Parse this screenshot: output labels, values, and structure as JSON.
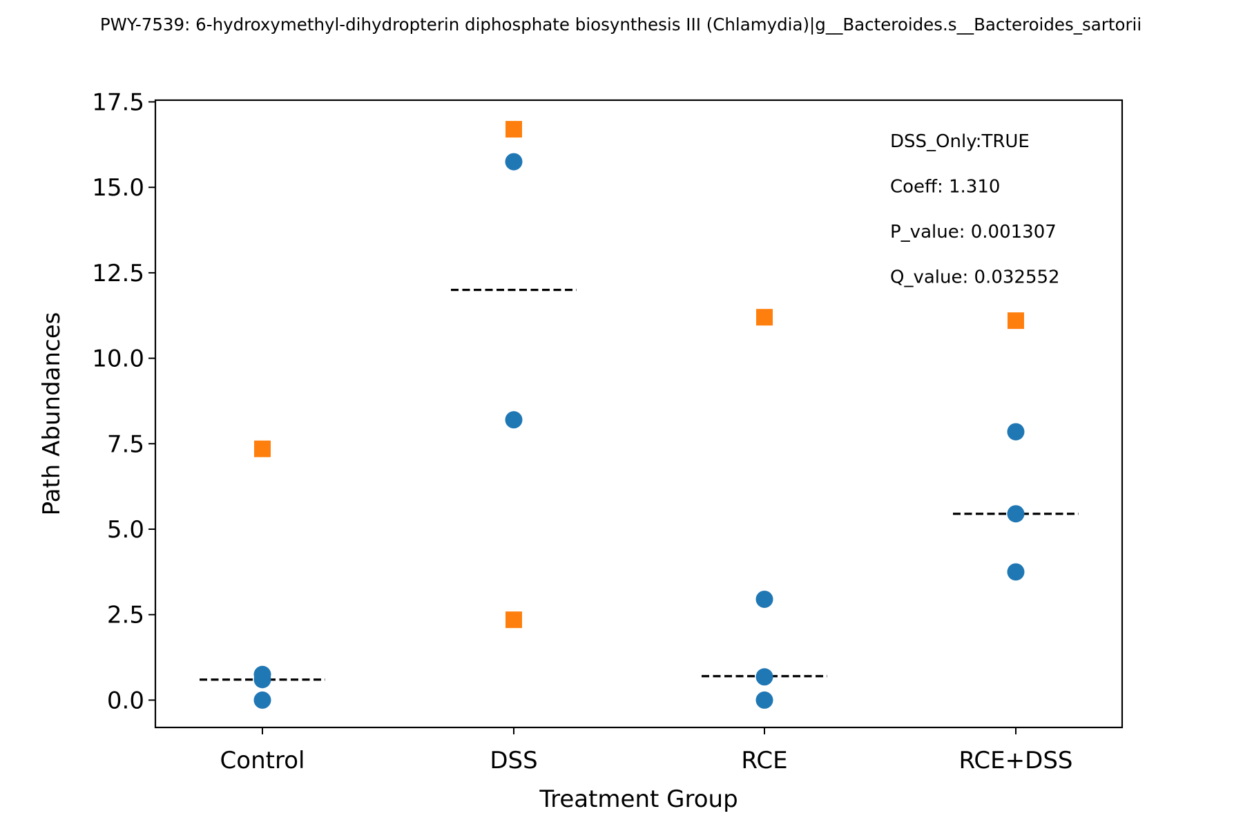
{
  "chart_data": {
    "type": "scatter",
    "title": "PWY-7539: 6-hydroxymethyl-dihydropterin diphosphate biosynthesis III (Chlamydia)|g__Bacteroides.s__Bacteroides_sartorii",
    "xlabel": "Treatment Group",
    "ylabel": "Path Abundances",
    "categories": [
      "Control",
      "DSS",
      "RCE",
      "RCE+DSS"
    ],
    "ylim": [
      -0.8,
      17.55
    ],
    "yticks": [
      0.0,
      2.5,
      5.0,
      7.5,
      10.0,
      12.5,
      15.0,
      17.5
    ],
    "ytick_labels": [
      "0.0",
      "2.5",
      "5.0",
      "7.5",
      "10.0",
      "12.5",
      "15.0",
      "17.5"
    ],
    "grid": false,
    "series": [
      {
        "marker": "circle",
        "color": "#1f77b4",
        "points": [
          {
            "category": "Control",
            "y": 0.0
          },
          {
            "category": "Control",
            "y": 0.6
          },
          {
            "category": "Control",
            "y": 0.75
          },
          {
            "category": "DSS",
            "y": 8.2
          },
          {
            "category": "DSS",
            "y": 15.75
          },
          {
            "category": "RCE",
            "y": 0.0
          },
          {
            "category": "RCE",
            "y": 0.68
          },
          {
            "category": "RCE",
            "y": 2.95
          },
          {
            "category": "RCE+DSS",
            "y": 3.75
          },
          {
            "category": "RCE+DSS",
            "y": 5.45
          },
          {
            "category": "RCE+DSS",
            "y": 7.85
          }
        ]
      },
      {
        "marker": "square",
        "color": "#ff7f0e",
        "points": [
          {
            "category": "Control",
            "y": 7.35
          },
          {
            "category": "DSS",
            "y": 2.35
          },
          {
            "category": "DSS",
            "y": 16.7
          },
          {
            "category": "RCE",
            "y": 11.2
          },
          {
            "category": "RCE+DSS",
            "y": 11.1
          }
        ]
      }
    ],
    "medians": [
      {
        "category": "Control",
        "y": 0.6
      },
      {
        "category": "DSS",
        "y": 12.0
      },
      {
        "category": "RCE",
        "y": 0.7
      },
      {
        "category": "RCE+DSS",
        "y": 5.45
      }
    ],
    "annotations": [
      "DSS_Only:TRUE",
      "Coeff: 1.310",
      "P_value: 0.001307",
      "Q_value: 0.032552"
    ]
  }
}
